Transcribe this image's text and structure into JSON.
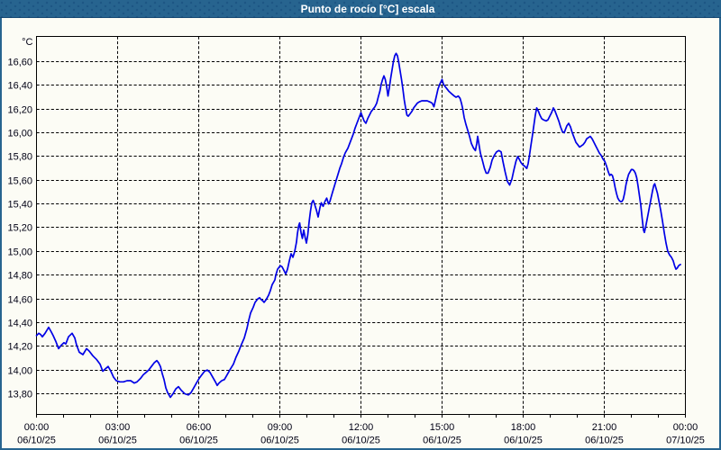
{
  "window": {
    "title": "Punto de rocío [°C] escala"
  },
  "colors": {
    "titlebar": "#27648f",
    "titlebar_text": "#ffffff",
    "frame": "#27648f",
    "background": "#fcfcf5",
    "plot_border": "#000000",
    "grid": "#000000",
    "line": "#0000e6",
    "label_text": "#000014"
  },
  "chart_data": {
    "type": "line",
    "title": "Punto de rocío [°C] escala",
    "ylabel": "°C",
    "unit": "°C",
    "grid": true,
    "legend_position": "none",
    "ylim": [
      13.6255,
      16.8124
    ],
    "xlim_hours": [
      0,
      24
    ],
    "y_ticks": [
      {
        "value": 13.8,
        "label": "13,80"
      },
      {
        "value": 14.0,
        "label": "14,00"
      },
      {
        "value": 14.2,
        "label": "14,20"
      },
      {
        "value": 14.4,
        "label": "14,40"
      },
      {
        "value": 14.6,
        "label": "14,60"
      },
      {
        "value": 14.8,
        "label": "14,80"
      },
      {
        "value": 15.0,
        "label": "15,00"
      },
      {
        "value": 15.2,
        "label": "15,20"
      },
      {
        "value": 15.4,
        "label": "15,40"
      },
      {
        "value": 15.6,
        "label": "15,60"
      },
      {
        "value": 15.8,
        "label": "15,80"
      },
      {
        "value": 16.0,
        "label": "16,00"
      },
      {
        "value": 16.2,
        "label": "16,20"
      },
      {
        "value": 16.4,
        "label": "16,40"
      },
      {
        "value": 16.6,
        "label": "16,60"
      }
    ],
    "x_ticks": [
      {
        "hour": 0,
        "time": "00:00",
        "date": "06/10/25"
      },
      {
        "hour": 3,
        "time": "03:00",
        "date": "06/10/25"
      },
      {
        "hour": 6,
        "time": "06:00",
        "date": "06/10/25"
      },
      {
        "hour": 9,
        "time": "09:00",
        "date": "06/10/25"
      },
      {
        "hour": 12,
        "time": "12:00",
        "date": "06/10/25"
      },
      {
        "hour": 15,
        "time": "15:00",
        "date": "06/10/25"
      },
      {
        "hour": 18,
        "time": "18:00",
        "date": "06/10/25"
      },
      {
        "hour": 21,
        "time": "21:00",
        "date": "06/10/25"
      },
      {
        "hour": 24,
        "time": "00:00",
        "date": "07/10/25"
      }
    ],
    "minor_x_tick_every_hours": 1,
    "series": [
      {
        "name": "Punto de rocío",
        "x_hours": [
          0.0,
          0.083,
          0.15,
          0.217,
          0.317,
          0.45,
          0.55,
          0.617,
          0.717,
          0.817,
          0.917,
          1.017,
          1.083,
          1.183,
          1.317,
          1.417,
          1.483,
          1.583,
          1.717,
          1.85,
          1.95,
          2.083,
          2.217,
          2.35,
          2.45,
          2.55,
          2.65,
          2.75,
          2.85,
          2.95,
          3.083,
          3.217,
          3.35,
          3.483,
          3.617,
          3.717,
          3.85,
          3.95,
          4.05,
          4.15,
          4.25,
          4.35,
          4.45,
          4.517,
          4.583,
          4.65,
          4.717,
          4.783,
          4.85,
          4.95,
          5.05,
          5.15,
          5.25,
          5.35,
          5.483,
          5.617,
          5.717,
          5.817,
          5.917,
          6.017,
          6.117,
          6.217,
          6.317,
          6.417,
          6.517,
          6.617,
          6.683,
          6.75,
          6.85,
          6.95,
          7.05,
          7.15,
          7.283,
          7.383,
          7.483,
          7.55,
          7.683,
          7.783,
          7.85,
          7.917,
          8.017,
          8.083,
          8.183,
          8.25,
          8.283,
          8.383,
          8.417,
          8.483,
          8.583,
          8.65,
          8.717,
          8.817,
          8.85,
          8.917,
          9.017,
          9.083,
          9.15,
          9.217,
          9.283,
          9.35,
          9.417,
          9.483,
          9.55,
          9.617,
          9.65,
          9.7,
          9.733,
          9.783,
          9.833,
          9.883,
          9.933,
          9.983,
          10.033,
          10.083,
          10.133,
          10.183,
          10.233,
          10.283,
          10.35,
          10.417,
          10.483,
          10.533,
          10.6,
          10.667,
          10.733,
          10.8,
          10.85,
          10.9,
          10.95,
          11.017,
          11.083,
          11.15,
          11.217,
          11.283,
          11.35,
          11.417,
          11.467,
          11.517,
          11.583,
          11.65,
          11.717,
          11.783,
          11.85,
          11.917,
          12.0,
          12.067,
          12.117,
          12.183,
          12.25,
          12.317,
          12.383,
          12.45,
          12.517,
          12.583,
          12.65,
          12.7,
          12.75,
          12.8,
          12.85,
          12.9,
          12.95,
          13.0,
          13.05,
          13.1,
          13.15,
          13.2,
          13.25,
          13.3,
          13.35,
          13.4,
          13.45,
          13.5,
          13.55,
          13.6,
          13.65,
          13.7,
          13.75,
          13.817,
          13.883,
          13.95,
          14.017,
          14.083,
          14.15,
          14.25,
          14.35,
          14.45,
          14.55,
          14.633,
          14.7,
          14.75,
          14.8,
          14.85,
          14.917,
          15.0,
          15.05,
          15.117,
          15.183,
          15.25,
          15.35,
          15.45,
          15.517,
          15.6,
          15.667,
          15.717,
          15.767,
          15.817,
          15.883,
          15.95,
          16.017,
          16.083,
          16.167,
          16.233,
          16.283,
          16.317,
          16.367,
          16.417,
          16.5,
          16.567,
          16.633,
          16.7,
          16.783,
          16.85,
          16.933,
          17.017,
          17.1,
          17.183,
          17.25,
          17.333,
          17.417,
          17.5,
          17.583,
          17.65,
          17.733,
          17.8,
          17.85,
          17.917,
          17.983,
          18.05,
          18.133,
          18.183,
          18.233,
          18.283,
          18.35,
          18.4,
          18.45,
          18.5,
          18.567,
          18.617,
          18.683,
          18.75,
          18.85,
          18.917,
          18.983,
          19.05,
          19.117,
          19.183,
          19.25,
          19.317,
          19.383,
          19.45,
          19.517,
          19.567,
          19.617,
          19.683,
          19.75,
          19.817,
          19.883,
          19.95,
          20.017,
          20.083,
          20.15,
          20.217,
          20.283,
          20.35,
          20.417,
          20.483,
          20.55,
          20.617,
          20.683,
          20.75,
          20.817,
          20.883,
          20.95,
          21.017,
          21.083,
          21.15,
          21.2,
          21.25,
          21.3,
          21.35,
          21.4,
          21.45,
          21.5,
          21.55,
          21.6,
          21.65,
          21.7,
          21.75,
          21.8,
          21.85,
          21.9,
          21.95,
          22.0,
          22.05,
          22.1,
          22.15,
          22.2,
          22.25,
          22.3,
          22.35,
          22.4,
          22.45,
          22.483,
          22.533,
          22.583,
          22.633,
          22.683,
          22.733,
          22.783,
          22.833,
          22.867,
          22.917,
          22.967,
          23.017,
          23.083,
          23.15,
          23.217,
          23.283,
          23.35,
          23.417,
          23.483,
          23.55,
          23.6,
          23.65,
          23.7,
          23.75,
          23.817
        ],
        "values": [
          14.29,
          14.31,
          14.3,
          14.28,
          14.31,
          14.36,
          14.32,
          14.29,
          14.24,
          14.18,
          14.21,
          14.23,
          14.22,
          14.28,
          14.31,
          14.27,
          14.21,
          14.15,
          14.13,
          14.18,
          14.16,
          14.12,
          14.09,
          14.05,
          13.99,
          14.01,
          14.03,
          13.99,
          13.94,
          13.91,
          13.9,
          13.9,
          13.91,
          13.91,
          13.89,
          13.9,
          13.93,
          13.96,
          13.98,
          14.0,
          14.03,
          14.06,
          14.08,
          14.06,
          14.03,
          13.97,
          13.92,
          13.85,
          13.81,
          13.77,
          13.8,
          13.84,
          13.86,
          13.83,
          13.8,
          13.79,
          13.81,
          13.85,
          13.89,
          13.93,
          13.96,
          13.99,
          14.0,
          13.98,
          13.94,
          13.9,
          13.87,
          13.89,
          13.91,
          13.92,
          13.96,
          14.0,
          14.05,
          14.11,
          14.16,
          14.2,
          14.27,
          14.35,
          14.42,
          14.48,
          14.53,
          14.57,
          14.6,
          14.61,
          14.6,
          14.58,
          14.57,
          14.59,
          14.63,
          14.67,
          14.72,
          14.76,
          14.8,
          14.85,
          14.88,
          14.87,
          14.84,
          14.81,
          14.85,
          14.92,
          14.98,
          14.95,
          15.0,
          15.08,
          15.15,
          15.22,
          15.24,
          15.16,
          15.11,
          15.18,
          15.12,
          15.07,
          15.14,
          15.25,
          15.34,
          15.41,
          15.43,
          15.4,
          15.35,
          15.29,
          15.37,
          15.41,
          15.38,
          15.42,
          15.45,
          15.4,
          15.42,
          15.46,
          15.5,
          15.55,
          15.6,
          15.65,
          15.7,
          15.74,
          15.79,
          15.83,
          15.85,
          15.87,
          15.91,
          15.95,
          15.99,
          16.04,
          16.08,
          16.12,
          16.17,
          16.13,
          16.1,
          16.08,
          16.12,
          16.15,
          16.18,
          16.2,
          16.22,
          16.25,
          16.31,
          16.35,
          16.41,
          16.45,
          16.48,
          16.45,
          16.39,
          16.31,
          16.38,
          16.46,
          16.53,
          16.6,
          16.65,
          16.67,
          16.65,
          16.59,
          16.52,
          16.45,
          16.37,
          16.28,
          16.21,
          16.15,
          16.14,
          16.16,
          16.18,
          16.21,
          16.23,
          16.25,
          16.26,
          16.27,
          16.27,
          16.27,
          16.26,
          16.25,
          16.22,
          16.27,
          16.32,
          16.37,
          16.41,
          16.45,
          16.41,
          16.39,
          16.37,
          16.35,
          16.33,
          16.31,
          16.3,
          16.31,
          16.29,
          16.25,
          16.2,
          16.13,
          16.07,
          16.02,
          15.97,
          15.91,
          15.87,
          15.85,
          15.91,
          15.97,
          15.9,
          15.83,
          15.76,
          15.7,
          15.66,
          15.66,
          15.71,
          15.77,
          15.81,
          15.84,
          15.85,
          15.84,
          15.76,
          15.67,
          15.59,
          15.56,
          15.61,
          15.68,
          15.76,
          15.8,
          15.78,
          15.75,
          15.73,
          15.72,
          15.7,
          15.74,
          15.81,
          15.89,
          15.99,
          16.07,
          16.15,
          16.21,
          16.18,
          16.15,
          16.12,
          16.11,
          16.1,
          16.11,
          16.14,
          16.17,
          16.21,
          16.18,
          16.14,
          16.1,
          16.05,
          16.01,
          16.0,
          16.03,
          16.06,
          16.08,
          16.05,
          16.0,
          15.96,
          15.92,
          15.9,
          15.88,
          15.89,
          15.9,
          15.92,
          15.95,
          15.96,
          15.97,
          15.95,
          15.92,
          15.89,
          15.86,
          15.83,
          15.81,
          15.78,
          15.76,
          15.72,
          15.67,
          15.64,
          15.65,
          15.64,
          15.6,
          15.54,
          15.49,
          15.45,
          15.43,
          15.42,
          15.42,
          15.44,
          15.49,
          15.56,
          15.61,
          15.65,
          15.67,
          15.69,
          15.69,
          15.68,
          15.66,
          15.62,
          15.55,
          15.47,
          15.39,
          15.28,
          15.18,
          15.16,
          15.21,
          15.27,
          15.33,
          15.39,
          15.45,
          15.51,
          15.56,
          15.57,
          15.53,
          15.49,
          15.43,
          15.35,
          15.26,
          15.16,
          15.07,
          15.0,
          14.97,
          14.95,
          14.92,
          14.88,
          14.85,
          14.86,
          14.88,
          14.89
        ]
      }
    ]
  }
}
